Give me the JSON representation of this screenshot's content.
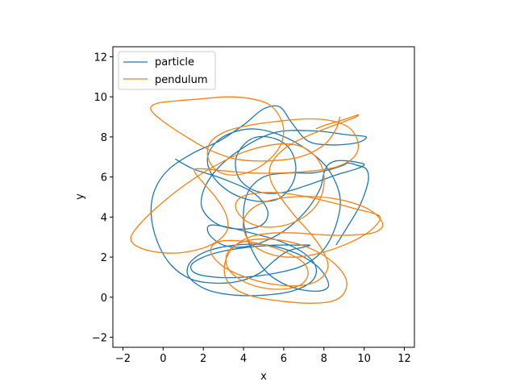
{
  "chart_data": {
    "type": "line",
    "title": "",
    "xlabel": "x",
    "ylabel": "y",
    "xlim": [
      -2.5,
      12.5
    ],
    "ylim": [
      -2.5,
      12.5
    ],
    "xticks": [
      "−2",
      "0",
      "2",
      "4",
      "6",
      "8",
      "10",
      "12"
    ],
    "yticks": [
      "−2",
      "0",
      "2",
      "4",
      "6",
      "8",
      "10",
      "12"
    ],
    "xtick_values": [
      -2,
      0,
      2,
      4,
      6,
      8,
      10,
      12
    ],
    "ytick_values": [
      -2,
      0,
      2,
      4,
      6,
      8,
      10,
      12
    ],
    "grid": false,
    "legend_position": "top-left",
    "series": [
      {
        "name": "particle",
        "color": "#1f77b4",
        "x": [
          0.6,
          1.5,
          3.0,
          4.5,
          5.2,
          4.9,
          3.8,
          2.6,
          1.9,
          2.3,
          3.6,
          5.5,
          7.5,
          9.2,
          10.1,
          9.6,
          8.3,
          7.2,
          6.4,
          5.8,
          5.0,
          4.0,
          2.8,
          1.5,
          0.3,
          -0.4,
          -0.6,
          -0.3,
          0.4,
          1.4,
          2.6,
          3.8,
          4.8,
          5.5,
          6.2,
          7.0,
          7.3,
          6.8,
          5.6,
          4.3,
          3.0,
          2.0,
          1.4,
          1.6,
          2.6,
          4.0,
          5.6,
          7.0,
          8.0,
          8.6,
          8.8,
          8.2,
          7.1,
          5.8,
          4.5,
          3.4,
          2.6,
          2.2,
          2.5,
          3.4,
          4.6,
          5.7,
          6.4,
          6.6,
          6.3,
          5.6,
          4.7,
          4.0,
          3.6,
          3.8,
          4.6,
          5.8,
          7.2,
          8.6,
          9.6,
          10.0,
          9.8,
          9.2,
          8.6,
          8.2,
          8.0,
          7.8,
          7.1,
          6.0,
          4.8,
          3.8,
          3.0,
          2.4,
          2.2,
          2.4,
          3.2,
          4.4,
          5.8,
          7.0,
          7.6,
          7.4,
          6.4,
          5.0,
          3.6,
          2.4,
          1.6,
          1.2,
          1.4,
          2.2,
          3.6,
          5.2,
          6.6,
          7.6,
          8.1,
          8.2,
          7.6,
          6.4,
          5.2,
          4.4,
          4.0,
          4.2,
          5.0,
          6.2,
          7.4,
          8.4,
          9.0,
          9.2,
          9.6,
          10.1,
          10.2,
          9.8,
          9.1,
          8.6
        ],
        "y": [
          6.9,
          6.4,
          5.9,
          5.2,
          4.3,
          3.6,
          3.4,
          3.7,
          4.6,
          5.9,
          7.2,
          8.2,
          8.3,
          8.1,
          8.0,
          7.7,
          7.6,
          7.8,
          8.7,
          9.5,
          9.4,
          8.6,
          7.8,
          7.2,
          6.4,
          5.4,
          4.2,
          2.8,
          1.6,
          0.9,
          0.7,
          0.8,
          1.2,
          1.8,
          2.3,
          2.5,
          2.6,
          2.6,
          2.6,
          2.5,
          2.3,
          2.0,
          1.6,
          1.2,
          1.0,
          1.0,
          1.2,
          1.6,
          2.4,
          3.6,
          5.0,
          6.4,
          7.4,
          8.1,
          8.4,
          8.2,
          7.7,
          6.9,
          6.0,
          5.2,
          4.8,
          4.9,
          5.6,
          6.5,
          7.4,
          7.9,
          8.0,
          7.6,
          6.8,
          5.9,
          5.3,
          5.2,
          5.6,
          6.1,
          6.4,
          6.6,
          6.7,
          6.8,
          6.8,
          6.6,
          6.2,
          5.4,
          4.3,
          3.3,
          2.7,
          2.5,
          2.6,
          3.0,
          3.4,
          3.6,
          3.5,
          3.2,
          2.8,
          2.2,
          1.5,
          0.8,
          0.3,
          0.1,
          0.1,
          0.3,
          0.7,
          1.2,
          1.8,
          2.3,
          2.6,
          2.6,
          2.2,
          1.6,
          1.0,
          0.5,
          0.3,
          0.5,
          1.2,
          2.4,
          3.8,
          5.2,
          6.0,
          6.2,
          6.2,
          6.4,
          6.6,
          6.7,
          6.6,
          6.4,
          5.8,
          4.6,
          3.4,
          2.6
        ]
      },
      {
        "name": "pendulum",
        "color": "#ff7f0e",
        "x": [
          8.8,
          8.6,
          8.0,
          6.8,
          5.2,
          3.6,
          2.2,
          1.0,
          0.1,
          -0.5,
          -0.6,
          -0.2,
          0.7,
          1.9,
          3.2,
          4.4,
          5.3,
          5.8,
          6.0,
          5.8,
          5.2,
          4.4,
          3.6,
          2.9,
          2.4,
          2.2,
          2.4,
          3.2,
          4.4,
          5.9,
          7.3,
          8.4,
          9.2,
          9.6,
          9.7,
          9.4,
          8.6,
          7.4,
          5.9,
          4.4,
          3.1,
          2.1,
          1.6,
          1.6,
          2.0,
          2.6,
          3.1,
          3.2,
          2.7,
          1.8,
          0.6,
          -0.6,
          -1.4,
          -1.6,
          -1.2,
          -0.4,
          0.8,
          2.3,
          3.9,
          5.4,
          6.6,
          7.4,
          7.9,
          8.0,
          7.7,
          7.0,
          6.1,
          5.1,
          4.3,
          3.8,
          3.6,
          3.9,
          4.7,
          5.9,
          7.2,
          8.5,
          9.6,
          10.4,
          10.8,
          10.6,
          10.0,
          9.0,
          7.8,
          6.6,
          5.5,
          4.6,
          4.1,
          4.0,
          4.4,
          5.2,
          6.4,
          7.8,
          9.1,
          10.2,
          10.8,
          10.9,
          10.4,
          9.4,
          8.1,
          6.7,
          5.4,
          4.3,
          3.5,
          3.1,
          3.1,
          3.6,
          4.6,
          5.9,
          7.3,
          8.4,
          9.0,
          9.1,
          8.5,
          7.4,
          6.1,
          4.8,
          3.8,
          3.2,
          3.2,
          3.8,
          4.8,
          5.9,
          6.8,
          7.2,
          7.0,
          6.2,
          5.1,
          3.9,
          2.9,
          2.4,
          2.5,
          3.2,
          4.4,
          5.8,
          7.0,
          7.8,
          8.2,
          8.0,
          7.4,
          6.6,
          5.9,
          5.4,
          5.3,
          5.6,
          6.3,
          7.3,
          8.3,
          9.1,
          9.6,
          9.7,
          9.4,
          8.8,
          8.1,
          7.6
        ],
        "y": [
          9.0,
          8.4,
          7.6,
          7.0,
          6.8,
          6.9,
          7.4,
          8.1,
          8.7,
          9.2,
          9.5,
          9.7,
          9.8,
          9.9,
          10.0,
          9.9,
          9.6,
          9.0,
          8.3,
          7.5,
          6.8,
          6.3,
          6.1,
          6.2,
          6.6,
          7.2,
          7.8,
          8.3,
          8.6,
          8.8,
          8.9,
          8.8,
          8.5,
          8.0,
          7.4,
          6.9,
          6.5,
          6.3,
          6.2,
          6.2,
          6.3,
          6.4,
          6.4,
          6.2,
          5.7,
          5.0,
          4.2,
          3.4,
          2.8,
          2.4,
          2.2,
          2.3,
          2.6,
          3.0,
          3.6,
          4.4,
          5.4,
          6.4,
          7.2,
          7.6,
          7.6,
          7.2,
          6.5,
          5.6,
          4.7,
          4.0,
          3.6,
          3.5,
          3.7,
          4.1,
          4.6,
          5.0,
          5.2,
          5.2,
          5.0,
          4.7,
          4.4,
          4.2,
          4.0,
          3.6,
          3.1,
          2.6,
          2.2,
          2.0,
          2.1,
          2.5,
          3.1,
          3.8,
          4.4,
          4.8,
          5.0,
          5.0,
          4.8,
          4.4,
          3.9,
          3.5,
          3.2,
          3.1,
          3.1,
          3.2,
          3.2,
          3.0,
          2.5,
          1.8,
          1.0,
          0.4,
          0.0,
          -0.2,
          -0.3,
          -0.2,
          0.2,
          0.9,
          1.7,
          2.4,
          2.8,
          2.9,
          2.7,
          2.2,
          1.5,
          0.9,
          0.5,
          0.4,
          0.6,
          1.1,
          1.7,
          2.2,
          2.6,
          2.8,
          2.8,
          2.5,
          2.0,
          1.4,
          0.9,
          0.6,
          0.6,
          0.9,
          1.5,
          2.2,
          3.1,
          4.0,
          4.9,
          5.7,
          6.4,
          7.0,
          7.6,
          8.1,
          8.5,
          8.8,
          9.0,
          9.1,
          9.0,
          8.8,
          8.6,
          8.4
        ]
      }
    ]
  }
}
